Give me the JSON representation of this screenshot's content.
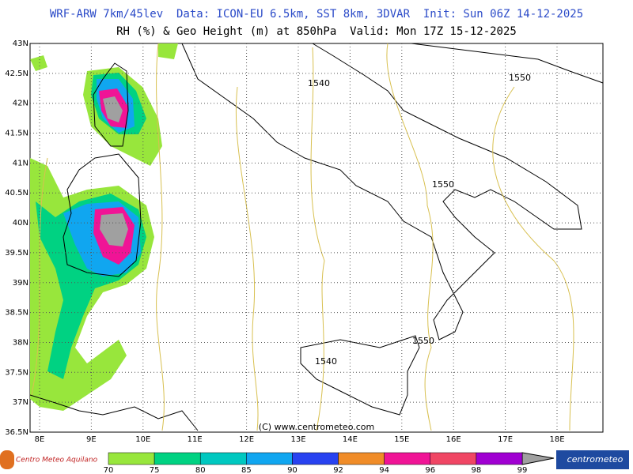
{
  "header": {
    "title": "WRF-ARW 7km/45lev  Data: ICON-EU 6.5km, SST 8km, 3DVAR  Init: Sun 06Z 14-12-2025",
    "subtitle": "RH (%) & Geo Height (m) at 850hPa  Valid: Mon 17Z 15-12-2025"
  },
  "map": {
    "lat_labels": [
      "43N",
      "42.5N",
      "42N",
      "41.5N",
      "41N",
      "40.5N",
      "40N",
      "39.5N",
      "39N",
      "38.5N",
      "38N",
      "37.5N",
      "37N",
      "36.5N"
    ],
    "lon_labels": [
      "8E",
      "9E",
      "10E",
      "11E",
      "12E",
      "13E",
      "14E",
      "15E",
      "16E",
      "17E",
      "18E"
    ],
    "contour_labels": [
      "1540",
      "1550",
      "1550",
      "1550",
      "1540"
    ],
    "copyright": "(C) www.centrometeo.com"
  },
  "legend": {
    "labels": [
      70,
      75,
      80,
      85,
      90,
      92,
      94,
      96,
      98,
      99
    ],
    "colors": [
      "#98e63c",
      "#00d282",
      "#00c8c0",
      "#10a6f0",
      "#2842f0",
      "#f08c28",
      "#f01496",
      "#f04664",
      "#a000d2"
    ]
  },
  "logos": {
    "left": "Centro Meteo Aquilano",
    "right": "centrometeo"
  }
}
